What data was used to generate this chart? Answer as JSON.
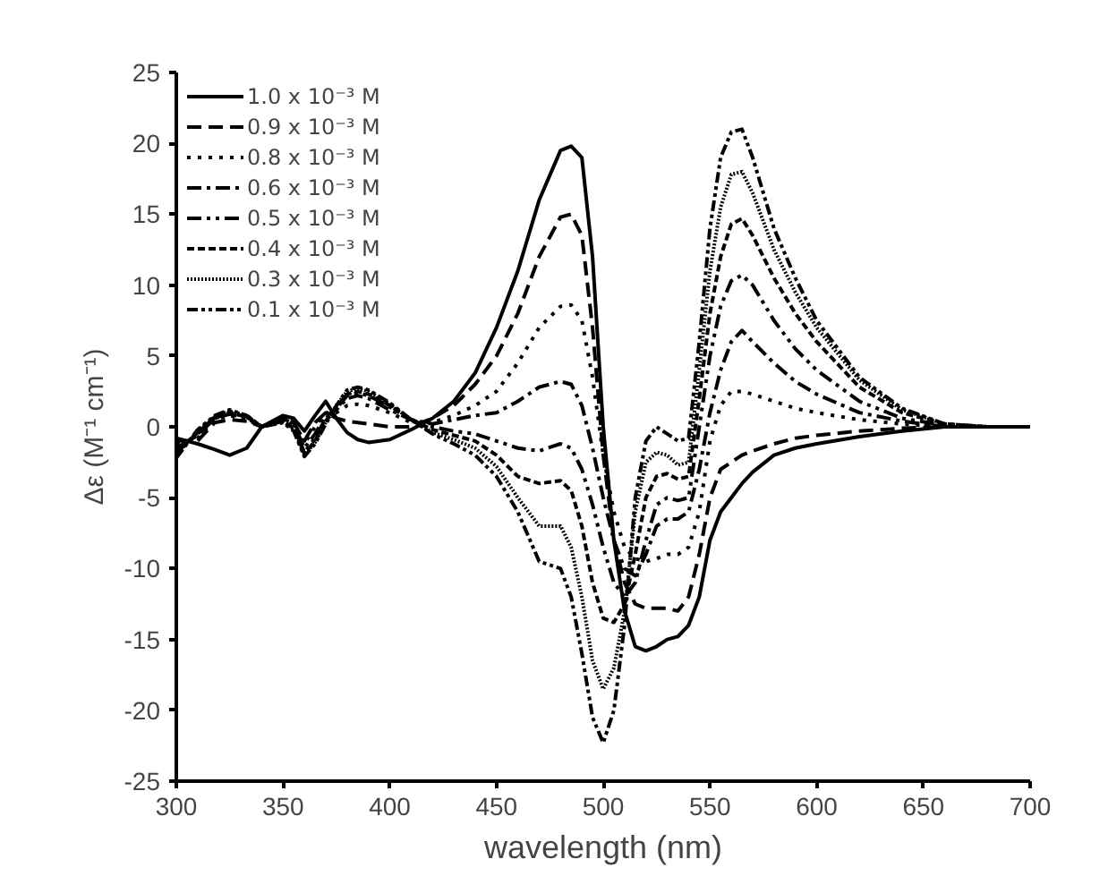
{
  "chart_data": {
    "type": "line",
    "xlabel": "wavelength (nm)",
    "ylabel": "Δε (M⁻¹ cm⁻¹)",
    "x": [
      300,
      310,
      318,
      325,
      333,
      340,
      350,
      355,
      360,
      365,
      370,
      375,
      380,
      385,
      390,
      400,
      410,
      420,
      430,
      440,
      450,
      460,
      470,
      480,
      485,
      490,
      495,
      500,
      505,
      510,
      515,
      520,
      525,
      530,
      535,
      540,
      545,
      550,
      555,
      560,
      565,
      570,
      580,
      590,
      600,
      620,
      640,
      660,
      680,
      700
    ],
    "series": [
      {
        "name": "1.0 x 10⁻³ M",
        "color": "#000000",
        "line_style": "solid",
        "values": [
          -0.8,
          -1.2,
          -1.6,
          -2,
          -1.5,
          0,
          0.8,
          0.6,
          -0.3,
          0.8,
          1.8,
          0.6,
          -0.4,
          -0.9,
          -1.1,
          -0.9,
          -0.2,
          0.6,
          1.8,
          3.8,
          7,
          11,
          16,
          19.5,
          19.8,
          19,
          12,
          0,
          -8,
          -13,
          -15.5,
          -15.8,
          -15.5,
          -15,
          -14.8,
          -14,
          -12,
          -8,
          -6,
          -5,
          -4,
          -3.2,
          -2,
          -1.5,
          -1.2,
          -0.7,
          -0.3,
          0,
          0,
          0
        ]
      },
      {
        "name": "0.9 x 10⁻³ M",
        "color": "#000000",
        "line_style": "dashed",
        "values": [
          -1,
          -1,
          0.3,
          0.5,
          0.4,
          0,
          0.6,
          0.3,
          -1,
          0.3,
          1,
          0.6,
          0.4,
          0.3,
          0.2,
          0,
          0,
          0.6,
          1.5,
          3,
          5,
          8,
          12,
          14.8,
          15,
          13.5,
          7,
          -2,
          -8,
          -11,
          -12.5,
          -12.8,
          -12.8,
          -12.8,
          -13,
          -12,
          -9,
          -5,
          -3,
          -2.5,
          -2,
          -1.7,
          -1.2,
          -0.8,
          -0.6,
          -0.3,
          -0.1,
          0,
          0,
          0
        ]
      },
      {
        "name": "0.8 x 10⁻³ M",
        "color": "#000000",
        "line_style": "dotted",
        "values": [
          -1.2,
          -0.8,
          0.5,
          0.8,
          0.5,
          0,
          0.7,
          0.3,
          -1.2,
          0,
          1,
          1,
          1.5,
          1.6,
          1.5,
          1,
          0.3,
          0.3,
          0.8,
          1.5,
          2.5,
          4.5,
          7,
          8.5,
          8.6,
          7.5,
          3.5,
          -2,
          -6,
          -8.5,
          -9.3,
          -9.5,
          -9.3,
          -9,
          -9,
          -8.5,
          -6,
          -1,
          1.5,
          2.5,
          2.5,
          2.3,
          1.8,
          1.3,
          1,
          0.5,
          0.2,
          0,
          0,
          0
        ]
      },
      {
        "name": "0.6 x 10⁻³ M",
        "color": "#000000",
        "line_style": "dashdot",
        "values": [
          -1.5,
          -0.6,
          0.6,
          0.9,
          0.6,
          0,
          0.6,
          0.2,
          -1.5,
          -0.5,
          0.8,
          1.2,
          2,
          2.2,
          2,
          1.2,
          0.5,
          0.2,
          0.5,
          0.8,
          1,
          1.8,
          2.8,
          3.2,
          3,
          1.5,
          -1.5,
          -5,
          -8,
          -10,
          -10.5,
          -9,
          -7,
          -6.5,
          -6.5,
          -6,
          -3,
          1,
          4,
          6,
          6.8,
          6,
          4.5,
          3.2,
          2.3,
          1,
          0.4,
          0,
          0,
          0
        ]
      },
      {
        "name": "0.5 x 10⁻³ M",
        "color": "#000000",
        "line_style": "dashdotdot",
        "values": [
          -1.8,
          -0.5,
          0.7,
          1,
          0.7,
          0,
          0.5,
          0,
          -1.8,
          -0.8,
          0.6,
          1.3,
          2.2,
          2.4,
          2.2,
          1.4,
          0.5,
          0,
          -0.3,
          -0.5,
          -1,
          -1.5,
          -1.7,
          -1.2,
          -1.5,
          -3,
          -5.5,
          -8.5,
          -11,
          -12,
          -11,
          -8,
          -5.5,
          -5,
          -5.2,
          -5,
          0,
          5,
          8.5,
          10.3,
          10.7,
          10,
          7.5,
          5.5,
          4,
          1.8,
          0.6,
          0.1,
          0,
          0
        ]
      },
      {
        "name": "0.4 x 10⁻³ M",
        "color": "#000000",
        "line_style": "shortdash",
        "values": [
          -1.8,
          -0.4,
          0.6,
          1,
          0.7,
          0,
          0.4,
          -0.1,
          -1.9,
          -1,
          0.4,
          1.4,
          2.3,
          2.5,
          2.3,
          1.5,
          0.5,
          -0.2,
          -0.6,
          -1,
          -2,
          -3.5,
          -4,
          -3.8,
          -4.5,
          -7,
          -11,
          -13.5,
          -13.8,
          -12.5,
          -9,
          -5,
          -3.5,
          -3.3,
          -3.7,
          -3.5,
          2,
          8,
          12,
          14.3,
          14.7,
          13.5,
          10.5,
          8,
          6,
          2.8,
          1,
          0.2,
          0,
          0
        ]
      },
      {
        "name": "0.3 x 10⁻³ M",
        "color": "#000000",
        "line_style": "densedotted",
        "values": [
          -2,
          -0.3,
          0.7,
          1.1,
          0.8,
          0,
          0.4,
          -0.2,
          -2,
          -1.1,
          0.3,
          1.5,
          2.5,
          2.7,
          2.5,
          1.6,
          0.5,
          -0.4,
          -0.9,
          -1.5,
          -2.8,
          -5,
          -7,
          -7,
          -8.5,
          -12,
          -16.5,
          -18.5,
          -17,
          -13,
          -6,
          -2.5,
          -1.8,
          -2,
          -2.7,
          -2.5,
          4,
          11,
          15.5,
          17.8,
          18,
          16.5,
          12.5,
          9.5,
          7,
          3.3,
          1.2,
          0.2,
          0,
          0
        ]
      },
      {
        "name": "0.1 x 10⁻³ M",
        "color": "#000000",
        "line_style": "dashdotdot2",
        "values": [
          -2.2,
          -0.2,
          0.8,
          1.2,
          0.8,
          0,
          0.3,
          -0.3,
          -2.1,
          -1.2,
          0.2,
          1.5,
          2.6,
          2.8,
          2.6,
          1.7,
          0.5,
          -0.5,
          -1.2,
          -2,
          -3.5,
          -6,
          -9.5,
          -10,
          -12,
          -16,
          -20.5,
          -22.3,
          -20,
          -14,
          -5,
          -1,
          0,
          -0.5,
          -1,
          -0.8,
          6,
          14,
          19,
          20.8,
          21,
          19,
          14,
          10.5,
          7.5,
          3.5,
          1.3,
          0.2,
          0,
          0
        ]
      }
    ],
    "xlim": [
      300,
      700
    ],
    "ylim": [
      -25,
      25
    ],
    "xticks": [
      300,
      350,
      400,
      450,
      500,
      550,
      600,
      650,
      700
    ],
    "yticks": [
      -25,
      -20,
      -15,
      -10,
      -5,
      0,
      5,
      10,
      15,
      20,
      25
    ],
    "grid": false,
    "legend": "top left"
  }
}
